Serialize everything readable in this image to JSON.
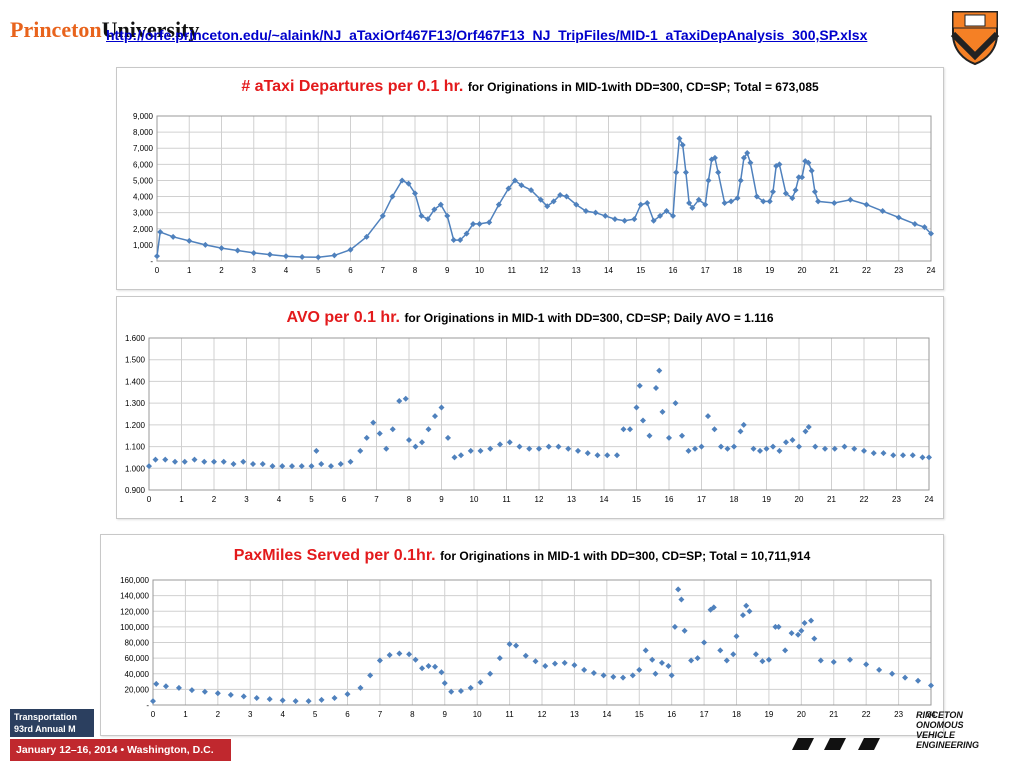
{
  "header": {
    "logo_orange": "Princeton",
    "logo_black": "University",
    "link_text": "http://orfe.princeton.edu/~alaink/NJ_aTaxiOrf467F13/Orf467F13_NJ_TripFiles/MID-1_aTaxiDepAnalysis_300,SP.xlsx"
  },
  "footer": {
    "org_line1": "Transportation",
    "org_line2": "93rd Annual M",
    "date_line": "January 12–16, 2014 • Washington, D.C.",
    "brand_lines": [
      "RINCETON",
      "ONOMOUS",
      "VEHICLE",
      "ENGINEERING"
    ]
  },
  "chart_data": [
    {
      "type": "scatter",
      "title": "# aTaxi Departures per 0.1 hr.",
      "subtitle": "for Originations in MID-1with DD=300, CD=SP; Total = 673,085",
      "xlim": [
        0,
        24
      ],
      "ylim": [
        0,
        9000
      ],
      "xticks": [
        "0",
        "1",
        "2",
        "3",
        "4",
        "5",
        "6",
        "7",
        "8",
        "9",
        "10",
        "11",
        "12",
        "13",
        "14",
        "15",
        "16",
        "17",
        "18",
        "19",
        "20",
        "21",
        "22",
        "23",
        "24"
      ],
      "yticks": [
        "-",
        "1,000",
        "2,000",
        "3,000",
        "4,000",
        "5,000",
        "6,000",
        "7,000",
        "8,000",
        "9,000"
      ],
      "connected": true,
      "color": "#4f81bd",
      "points": [
        [
          0,
          300
        ],
        [
          0.1,
          1800
        ],
        [
          0.5,
          1500
        ],
        [
          1,
          1250
        ],
        [
          1.5,
          1000
        ],
        [
          2,
          800
        ],
        [
          2.5,
          650
        ],
        [
          3,
          500
        ],
        [
          3.5,
          400
        ],
        [
          4,
          300
        ],
        [
          4.5,
          250
        ],
        [
          5,
          230
        ],
        [
          5.5,
          350
        ],
        [
          6,
          700
        ],
        [
          6.5,
          1500
        ],
        [
          7,
          2800
        ],
        [
          7.3,
          4000
        ],
        [
          7.6,
          5000
        ],
        [
          7.8,
          4800
        ],
        [
          8,
          4200
        ],
        [
          8.2,
          2800
        ],
        [
          8.4,
          2600
        ],
        [
          8.6,
          3200
        ],
        [
          8.8,
          3500
        ],
        [
          9,
          2800
        ],
        [
          9.2,
          1300
        ],
        [
          9.4,
          1300
        ],
        [
          9.6,
          1700
        ],
        [
          9.8,
          2300
        ],
        [
          10,
          2300
        ],
        [
          10.3,
          2400
        ],
        [
          10.6,
          3500
        ],
        [
          10.9,
          4500
        ],
        [
          11.1,
          5000
        ],
        [
          11.3,
          4700
        ],
        [
          11.6,
          4400
        ],
        [
          11.9,
          3800
        ],
        [
          12.1,
          3400
        ],
        [
          12.3,
          3700
        ],
        [
          12.5,
          4100
        ],
        [
          12.7,
          4000
        ],
        [
          13,
          3500
        ],
        [
          13.3,
          3100
        ],
        [
          13.6,
          3000
        ],
        [
          13.9,
          2800
        ],
        [
          14.2,
          2600
        ],
        [
          14.5,
          2500
        ],
        [
          14.8,
          2600
        ],
        [
          15,
          3500
        ],
        [
          15.2,
          3600
        ],
        [
          15.4,
          2500
        ],
        [
          15.6,
          2800
        ],
        [
          15.8,
          3100
        ],
        [
          16,
          2800
        ],
        [
          16.1,
          5500
        ],
        [
          16.2,
          7600
        ],
        [
          16.3,
          7200
        ],
        [
          16.4,
          5500
        ],
        [
          16.5,
          3600
        ],
        [
          16.6,
          3300
        ],
        [
          16.8,
          3800
        ],
        [
          17,
          3500
        ],
        [
          17.1,
          5000
        ],
        [
          17.2,
          6300
        ],
        [
          17.3,
          6400
        ],
        [
          17.4,
          5500
        ],
        [
          17.6,
          3600
        ],
        [
          17.8,
          3700
        ],
        [
          18,
          3900
        ],
        [
          18.1,
          5000
        ],
        [
          18.2,
          6400
        ],
        [
          18.3,
          6700
        ],
        [
          18.4,
          6100
        ],
        [
          18.6,
          4000
        ],
        [
          18.8,
          3700
        ],
        [
          19,
          3700
        ],
        [
          19.1,
          4300
        ],
        [
          19.2,
          5900
        ],
        [
          19.3,
          6000
        ],
        [
          19.5,
          4200
        ],
        [
          19.7,
          3900
        ],
        [
          19.8,
          4400
        ],
        [
          19.9,
          5200
        ],
        [
          20,
          5200
        ],
        [
          20.1,
          6200
        ],
        [
          20.2,
          6100
        ],
        [
          20.3,
          5600
        ],
        [
          20.4,
          4300
        ],
        [
          20.5,
          3700
        ],
        [
          21,
          3600
        ],
        [
          21.5,
          3800
        ],
        [
          22,
          3500
        ],
        [
          22.5,
          3100
        ],
        [
          23,
          2700
        ],
        [
          23.5,
          2300
        ],
        [
          23.8,
          2100
        ],
        [
          24,
          1700
        ]
      ]
    },
    {
      "type": "scatter",
      "title": "AVO per 0.1 hr.",
      "subtitle": "for Originations in MID-1 with DD=300, CD=SP; Daily AVO = 1.116",
      "xlim": [
        0,
        24
      ],
      "ylim": [
        0.9,
        1.6
      ],
      "xticks": [
        "0",
        "1",
        "2",
        "3",
        "4",
        "5",
        "6",
        "7",
        "8",
        "9",
        "10",
        "11",
        "12",
        "13",
        "14",
        "15",
        "16",
        "17",
        "18",
        "19",
        "20",
        "21",
        "22",
        "23",
        "24"
      ],
      "yticks": [
        "0.900",
        "1.000",
        "1.100",
        "1.200",
        "1.300",
        "1.400",
        "1.500",
        "1.600"
      ],
      "connected": false,
      "color": "#4f81bd",
      "points": [
        [
          0,
          1.01
        ],
        [
          0.2,
          1.04
        ],
        [
          0.5,
          1.04
        ],
        [
          0.8,
          1.03
        ],
        [
          1.1,
          1.03
        ],
        [
          1.4,
          1.04
        ],
        [
          1.7,
          1.03
        ],
        [
          2,
          1.03
        ],
        [
          2.3,
          1.03
        ],
        [
          2.6,
          1.02
        ],
        [
          2.9,
          1.03
        ],
        [
          3.2,
          1.02
        ],
        [
          3.5,
          1.02
        ],
        [
          3.8,
          1.01
        ],
        [
          4.1,
          1.01
        ],
        [
          4.4,
          1.01
        ],
        [
          4.7,
          1.01
        ],
        [
          5,
          1.01
        ],
        [
          5.15,
          1.08
        ],
        [
          5.3,
          1.02
        ],
        [
          5.6,
          1.01
        ],
        [
          5.9,
          1.02
        ],
        [
          6.2,
          1.03
        ],
        [
          6.5,
          1.08
        ],
        [
          6.7,
          1.14
        ],
        [
          6.9,
          1.21
        ],
        [
          7.1,
          1.16
        ],
        [
          7.3,
          1.09
        ],
        [
          7.5,
          1.18
        ],
        [
          7.7,
          1.31
        ],
        [
          7.9,
          1.32
        ],
        [
          8,
          1.13
        ],
        [
          8.2,
          1.1
        ],
        [
          8.4,
          1.12
        ],
        [
          8.6,
          1.18
        ],
        [
          8.8,
          1.24
        ],
        [
          9,
          1.28
        ],
        [
          9.2,
          1.14
        ],
        [
          9.4,
          1.05
        ],
        [
          9.6,
          1.06
        ],
        [
          9.9,
          1.08
        ],
        [
          10.2,
          1.08
        ],
        [
          10.5,
          1.09
        ],
        [
          10.8,
          1.11
        ],
        [
          11.1,
          1.12
        ],
        [
          11.4,
          1.1
        ],
        [
          11.7,
          1.09
        ],
        [
          12,
          1.09
        ],
        [
          12.3,
          1.1
        ],
        [
          12.6,
          1.1
        ],
        [
          12.9,
          1.09
        ],
        [
          13.2,
          1.08
        ],
        [
          13.5,
          1.07
        ],
        [
          13.8,
          1.06
        ],
        [
          14.1,
          1.06
        ],
        [
          14.4,
          1.06
        ],
        [
          14.6,
          1.18
        ],
        [
          14.8,
          1.18
        ],
        [
          15,
          1.28
        ],
        [
          15.1,
          1.38
        ],
        [
          15.2,
          1.22
        ],
        [
          15.4,
          1.15
        ],
        [
          15.6,
          1.37
        ],
        [
          15.7,
          1.45
        ],
        [
          15.8,
          1.26
        ],
        [
          16,
          1.14
        ],
        [
          16.2,
          1.3
        ],
        [
          16.4,
          1.15
        ],
        [
          16.6,
          1.08
        ],
        [
          16.8,
          1.09
        ],
        [
          17,
          1.1
        ],
        [
          17.2,
          1.24
        ],
        [
          17.4,
          1.18
        ],
        [
          17.6,
          1.1
        ],
        [
          17.8,
          1.09
        ],
        [
          18,
          1.1
        ],
        [
          18.2,
          1.17
        ],
        [
          18.3,
          1.2
        ],
        [
          18.6,
          1.09
        ],
        [
          18.8,
          1.08
        ],
        [
          19,
          1.09
        ],
        [
          19.2,
          1.1
        ],
        [
          19.4,
          1.08
        ],
        [
          19.6,
          1.12
        ],
        [
          19.8,
          1.13
        ],
        [
          20,
          1.1
        ],
        [
          20.2,
          1.17
        ],
        [
          20.3,
          1.19
        ],
        [
          20.5,
          1.1
        ],
        [
          20.8,
          1.09
        ],
        [
          21.1,
          1.09
        ],
        [
          21.4,
          1.1
        ],
        [
          21.7,
          1.09
        ],
        [
          22,
          1.08
        ],
        [
          22.3,
          1.07
        ],
        [
          22.6,
          1.07
        ],
        [
          22.9,
          1.06
        ],
        [
          23.2,
          1.06
        ],
        [
          23.5,
          1.06
        ],
        [
          23.8,
          1.05
        ],
        [
          24,
          1.05
        ]
      ]
    },
    {
      "type": "scatter",
      "title": "PaxMiles Served per 0.1hr.",
      "subtitle": "for Originations in MID-1 with DD=300, CD=SP; Total = 10,711,914",
      "xlim": [
        0,
        24
      ],
      "ylim": [
        0,
        160000
      ],
      "xticks": [
        "0",
        "1",
        "2",
        "3",
        "4",
        "5",
        "6",
        "7",
        "8",
        "9",
        "10",
        "11",
        "12",
        "13",
        "14",
        "15",
        "16",
        "17",
        "18",
        "19",
        "20",
        "21",
        "22",
        "23",
        "24"
      ],
      "yticks": [
        "-",
        "20,000",
        "40,000",
        "60,000",
        "80,000",
        "100,000",
        "120,000",
        "140,000",
        "160,000"
      ],
      "connected": false,
      "color": "#4f81bd",
      "points": [
        [
          0,
          5000
        ],
        [
          0.1,
          27000
        ],
        [
          0.4,
          24000
        ],
        [
          0.8,
          22000
        ],
        [
          1.2,
          19000
        ],
        [
          1.6,
          17000
        ],
        [
          2,
          15000
        ],
        [
          2.4,
          13000
        ],
        [
          2.8,
          11000
        ],
        [
          3.2,
          9000
        ],
        [
          3.6,
          7500
        ],
        [
          4,
          6000
        ],
        [
          4.4,
          5000
        ],
        [
          4.8,
          5000
        ],
        [
          5.2,
          6500
        ],
        [
          5.6,
          9000
        ],
        [
          6,
          14000
        ],
        [
          6.4,
          22000
        ],
        [
          6.7,
          38000
        ],
        [
          7,
          57000
        ],
        [
          7.3,
          64000
        ],
        [
          7.6,
          66000
        ],
        [
          7.9,
          65000
        ],
        [
          8.1,
          58000
        ],
        [
          8.3,
          47000
        ],
        [
          8.5,
          50000
        ],
        [
          8.7,
          49000
        ],
        [
          8.9,
          42000
        ],
        [
          9,
          28000
        ],
        [
          9.2,
          17000
        ],
        [
          9.5,
          18000
        ],
        [
          9.8,
          22000
        ],
        [
          10.1,
          29000
        ],
        [
          10.4,
          40000
        ],
        [
          10.7,
          60000
        ],
        [
          11,
          78000
        ],
        [
          11.2,
          76000
        ],
        [
          11.5,
          63000
        ],
        [
          11.8,
          56000
        ],
        [
          12.1,
          50000
        ],
        [
          12.4,
          53000
        ],
        [
          12.7,
          54000
        ],
        [
          13,
          51000
        ],
        [
          13.3,
          45000
        ],
        [
          13.6,
          41000
        ],
        [
          13.9,
          38000
        ],
        [
          14.2,
          36000
        ],
        [
          14.5,
          35000
        ],
        [
          14.8,
          38000
        ],
        [
          15,
          45000
        ],
        [
          15.2,
          70000
        ],
        [
          15.4,
          58000
        ],
        [
          15.5,
          40000
        ],
        [
          15.7,
          54000
        ],
        [
          15.9,
          50000
        ],
        [
          16,
          38000
        ],
        [
          16.1,
          100000
        ],
        [
          16.2,
          148000
        ],
        [
          16.3,
          135000
        ],
        [
          16.4,
          95000
        ],
        [
          16.6,
          57000
        ],
        [
          16.8,
          60000
        ],
        [
          17,
          80000
        ],
        [
          17.2,
          122000
        ],
        [
          17.3,
          125000
        ],
        [
          17.5,
          70000
        ],
        [
          17.7,
          57000
        ],
        [
          17.9,
          65000
        ],
        [
          18,
          88000
        ],
        [
          18.2,
          115000
        ],
        [
          18.3,
          127000
        ],
        [
          18.4,
          120000
        ],
        [
          18.6,
          65000
        ],
        [
          18.8,
          56000
        ],
        [
          19,
          58000
        ],
        [
          19.2,
          100000
        ],
        [
          19.3,
          100000
        ],
        [
          19.5,
          70000
        ],
        [
          19.7,
          92000
        ],
        [
          19.9,
          90000
        ],
        [
          20,
          95000
        ],
        [
          20.1,
          105000
        ],
        [
          20.3,
          108000
        ],
        [
          20.4,
          85000
        ],
        [
          20.6,
          57000
        ],
        [
          21,
          55000
        ],
        [
          21.5,
          58000
        ],
        [
          22,
          52000
        ],
        [
          22.4,
          45000
        ],
        [
          22.8,
          40000
        ],
        [
          23.2,
          35000
        ],
        [
          23.6,
          31000
        ],
        [
          24,
          25000
        ]
      ]
    }
  ]
}
